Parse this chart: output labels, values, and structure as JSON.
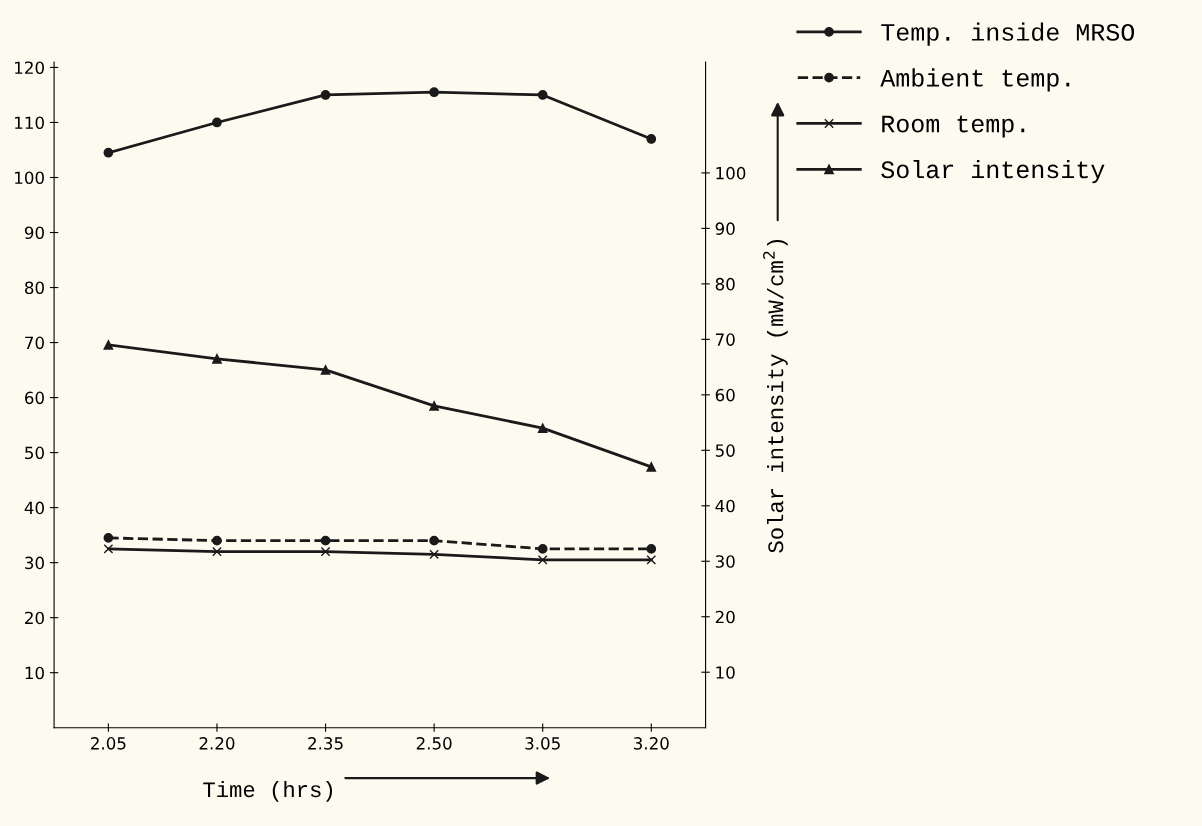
{
  "chart_data": {
    "type": "line",
    "xlabel": "Time (hrs)",
    "y2label": "Solar intensity (mW/cm$^{2}$)",
    "categories": [
      "2.05",
      "2.20",
      "2.35",
      "2.50",
      "3.05",
      "3.20"
    ],
    "series": [
      {
        "name": "Temp. inside MRSO",
        "color": "#1a1a1a",
        "marker": "circle",
        "line_style": "solid",
        "values": [
          104.5,
          110,
          115,
          115.5,
          115,
          107
        ]
      },
      {
        "name": "Ambient temp.",
        "color": "#1a1a1a",
        "marker": "circle",
        "line_style": "dashed",
        "values": [
          34.5,
          34,
          34,
          34,
          32.5,
          32.5
        ]
      },
      {
        "name": "Room temp.",
        "color": "#1a1a1a",
        "marker": "cross",
        "line_style": "solid",
        "values": [
          32.5,
          32,
          32,
          31.5,
          30.5,
          30.5
        ]
      },
      {
        "name": "Solar intensity",
        "color": "#1a1a1a",
        "marker": "triangle",
        "line_style": "solid",
        "axis": "y2",
        "values": [
          69,
          66.5,
          64.5,
          58,
          54,
          47
        ]
      }
    ],
    "ylim": [
      0,
      121
    ],
    "yticks": [
      10,
      20,
      30,
      40,
      50,
      60,
      70,
      80,
      90,
      100,
      110,
      120
    ],
    "y2lim": [
      0,
      120
    ],
    "y2ticks": [
      10,
      20,
      30,
      40,
      50,
      60,
      70,
      80,
      90,
      100
    ],
    "grid": false,
    "legend": "right"
  }
}
